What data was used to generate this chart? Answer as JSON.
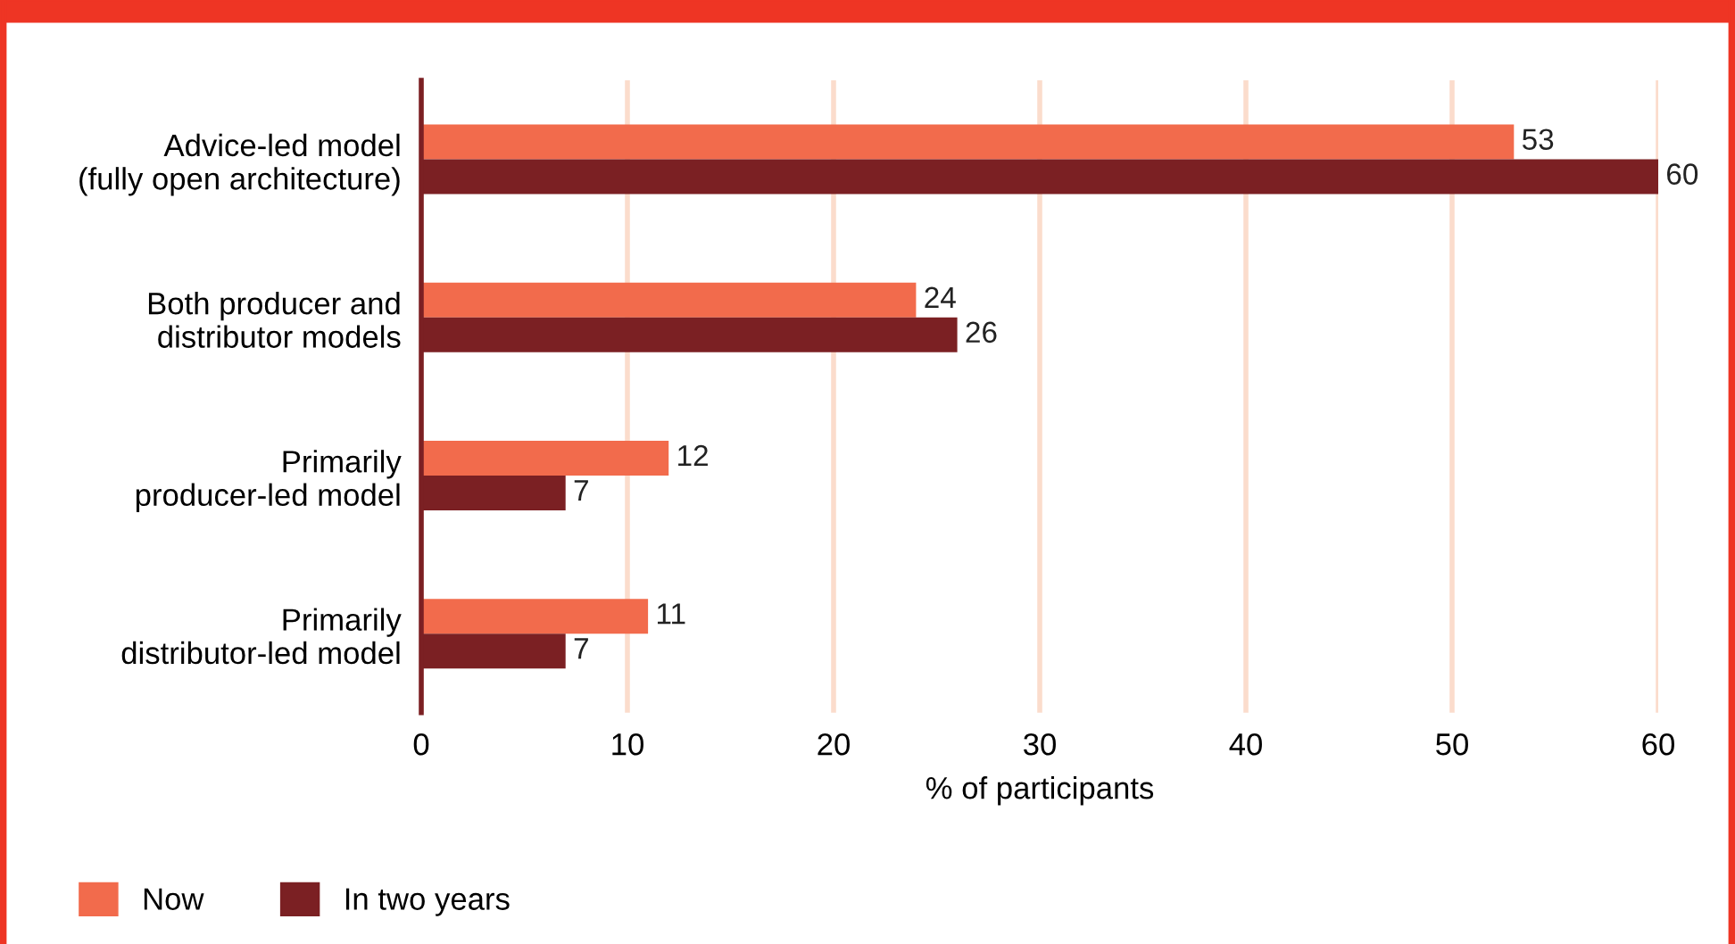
{
  "chart_data": {
    "type": "bar",
    "orientation": "horizontal",
    "categories": [
      "Advice-led model\n(fully open architecture)",
      "Both producer and\ndistributor models",
      "Primarily\nproducer-led model",
      "Primarily\ndistributor-led model"
    ],
    "series": [
      {
        "name": "Now",
        "color": "#f26b4c",
        "values": [
          53,
          24,
          12,
          11
        ]
      },
      {
        "name": "In two years",
        "color": "#7b2023",
        "values": [
          60,
          26,
          7,
          7
        ]
      }
    ],
    "xlabel": "% of participants",
    "xlim": [
      0,
      60
    ],
    "xticks": [
      0,
      10,
      20,
      30,
      40,
      50,
      60
    ],
    "grid": "x",
    "legend": "bottom left",
    "data_labels": true
  }
}
